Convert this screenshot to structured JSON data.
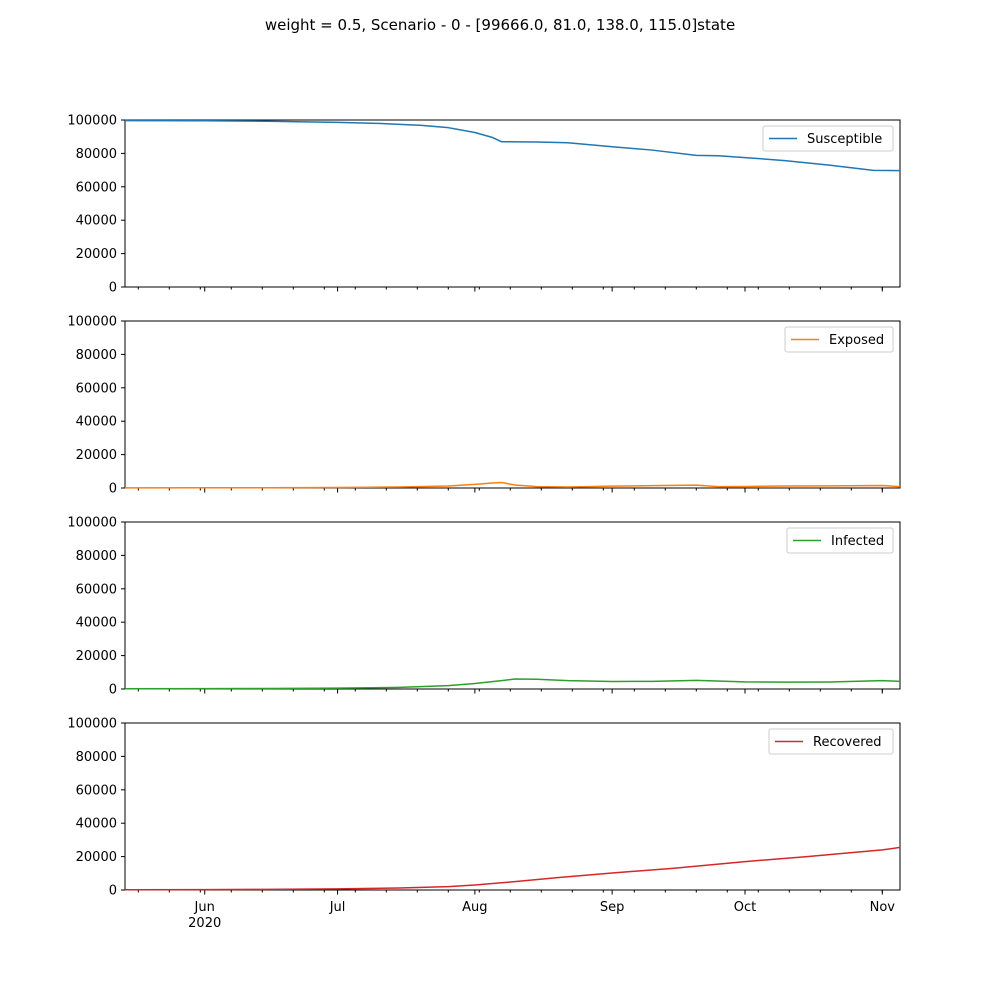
{
  "title": "weight = 0.5, Scenario - 0 - [99666.0, 81.0, 138.0, 115.0]state",
  "chart_data": {
    "type": "line",
    "x_axis": {
      "kind": "date",
      "range": [
        "2020-05-14",
        "2020-11-05"
      ],
      "major_ticks": [
        {
          "date": "2020-06-01",
          "label": "Jun",
          "sublabel": "2020"
        },
        {
          "date": "2020-07-01",
          "label": "Jul",
          "sublabel": ""
        },
        {
          "date": "2020-08-01",
          "label": "Aug",
          "sublabel": ""
        },
        {
          "date": "2020-09-01",
          "label": "Sep",
          "sublabel": ""
        },
        {
          "date": "2020-10-01",
          "label": "Oct",
          "sublabel": ""
        },
        {
          "date": "2020-11-01",
          "label": "Nov",
          "sublabel": ""
        }
      ],
      "minor_ticks": [
        "2020-05-17",
        "2020-05-24",
        "2020-05-31",
        "2020-06-07",
        "2020-06-14",
        "2020-06-21",
        "2020-06-28",
        "2020-07-05",
        "2020-07-12",
        "2020-07-19",
        "2020-07-26",
        "2020-08-02",
        "2020-08-09",
        "2020-08-16",
        "2020-08-23",
        "2020-08-30",
        "2020-09-06",
        "2020-09-13",
        "2020-09-20",
        "2020-09-27",
        "2020-10-04",
        "2020-10-11",
        "2020-10-18",
        "2020-10-25",
        "2020-11-01"
      ]
    },
    "y_axis": {
      "range": [
        0,
        100000
      ],
      "ticks": [
        0,
        20000,
        40000,
        60000,
        80000,
        100000
      ],
      "tick_labels": [
        "0",
        "20000",
        "40000",
        "60000",
        "80000",
        "100000"
      ]
    },
    "legend_position": "top-right",
    "grid": false,
    "subplots": [
      {
        "name": "Susceptible",
        "color": "#1f77b4",
        "points": [
          [
            "2020-05-14",
            99666
          ],
          [
            "2020-06-01",
            99550
          ],
          [
            "2020-06-15",
            99250
          ],
          [
            "2020-07-01",
            98600
          ],
          [
            "2020-07-10",
            98000
          ],
          [
            "2020-07-20",
            96800
          ],
          [
            "2020-07-26",
            95400
          ],
          [
            "2020-08-01",
            92500
          ],
          [
            "2020-08-05",
            89500
          ],
          [
            "2020-08-07",
            87000
          ],
          [
            "2020-08-15",
            86800
          ],
          [
            "2020-08-22",
            86400
          ],
          [
            "2020-09-01",
            84000
          ],
          [
            "2020-09-10",
            82000
          ],
          [
            "2020-09-20",
            78800
          ],
          [
            "2020-09-25",
            78600
          ],
          [
            "2020-10-01",
            77500
          ],
          [
            "2020-10-10",
            75700
          ],
          [
            "2020-10-20",
            73000
          ],
          [
            "2020-10-30",
            69800
          ],
          [
            "2020-11-05",
            69700
          ]
        ]
      },
      {
        "name": "Exposed",
        "color": "#ff7f0e",
        "points": [
          [
            "2020-05-14",
            81
          ],
          [
            "2020-06-01",
            120
          ],
          [
            "2020-06-15",
            180
          ],
          [
            "2020-07-01",
            300
          ],
          [
            "2020-07-15",
            600
          ],
          [
            "2020-07-26",
            1200
          ],
          [
            "2020-08-01",
            2200
          ],
          [
            "2020-08-05",
            3000
          ],
          [
            "2020-08-07",
            3300
          ],
          [
            "2020-08-10",
            1800
          ],
          [
            "2020-08-15",
            800
          ],
          [
            "2020-08-22",
            600
          ],
          [
            "2020-09-01",
            1100
          ],
          [
            "2020-09-10",
            1400
          ],
          [
            "2020-09-20",
            1700
          ],
          [
            "2020-09-25",
            800
          ],
          [
            "2020-10-01",
            900
          ],
          [
            "2020-10-10",
            1200
          ],
          [
            "2020-10-20",
            1300
          ],
          [
            "2020-11-01",
            1500
          ],
          [
            "2020-11-05",
            800
          ]
        ]
      },
      {
        "name": "Infected",
        "color": "#2ca02c",
        "points": [
          [
            "2020-05-14",
            138
          ],
          [
            "2020-06-01",
            200
          ],
          [
            "2020-06-15",
            300
          ],
          [
            "2020-07-01",
            500
          ],
          [
            "2020-07-15",
            1000
          ],
          [
            "2020-07-26",
            2000
          ],
          [
            "2020-08-01",
            3300
          ],
          [
            "2020-08-07",
            5000
          ],
          [
            "2020-08-10",
            6000
          ],
          [
            "2020-08-15",
            5800
          ],
          [
            "2020-08-22",
            5000
          ],
          [
            "2020-09-01",
            4500
          ],
          [
            "2020-09-10",
            4600
          ],
          [
            "2020-09-20",
            5200
          ],
          [
            "2020-10-01",
            4300
          ],
          [
            "2020-10-10",
            4100
          ],
          [
            "2020-10-20",
            4200
          ],
          [
            "2020-11-01",
            5000
          ],
          [
            "2020-11-05",
            4600
          ]
        ]
      },
      {
        "name": "Recovered",
        "color": "#d62728",
        "points": [
          [
            "2020-05-14",
            115
          ],
          [
            "2020-06-01",
            250
          ],
          [
            "2020-06-15",
            400
          ],
          [
            "2020-07-01",
            700
          ],
          [
            "2020-07-15",
            1200
          ],
          [
            "2020-07-26",
            2000
          ],
          [
            "2020-08-01",
            3000
          ],
          [
            "2020-08-10",
            5000
          ],
          [
            "2020-08-20",
            7500
          ],
          [
            "2020-09-01",
            10200
          ],
          [
            "2020-09-15",
            13000
          ],
          [
            "2020-10-01",
            17000
          ],
          [
            "2020-10-15",
            20000
          ],
          [
            "2020-11-01",
            24000
          ],
          [
            "2020-11-05",
            25500
          ]
        ]
      }
    ]
  }
}
